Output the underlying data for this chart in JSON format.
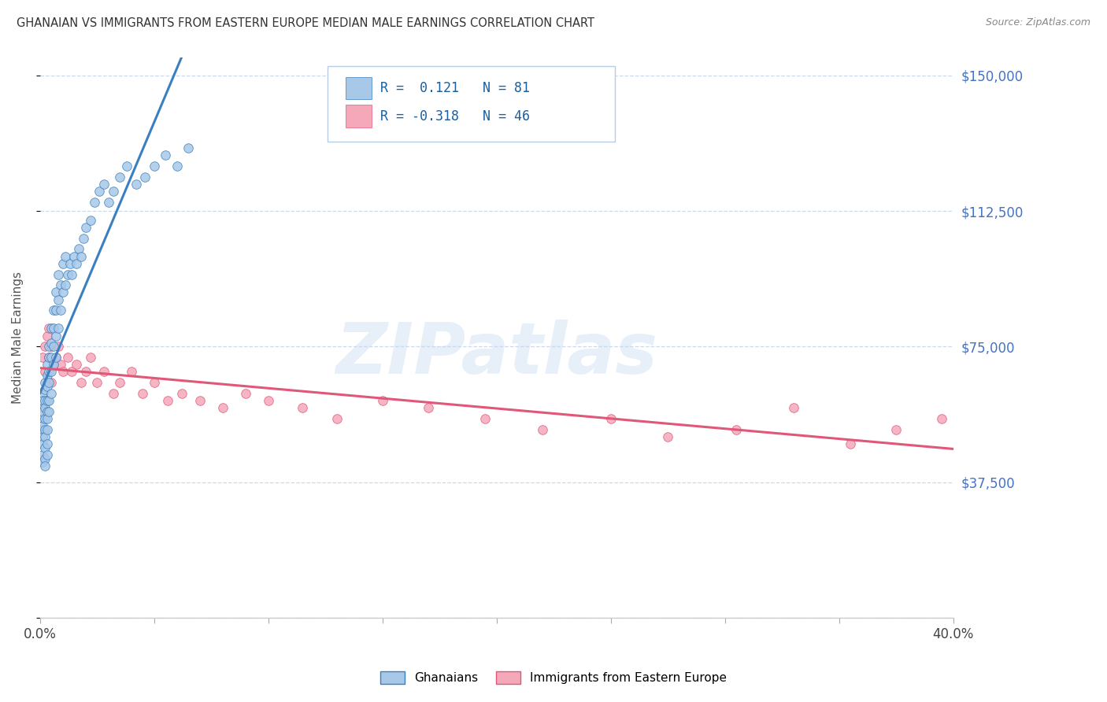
{
  "title": "GHANAIAN VS IMMIGRANTS FROM EASTERN EUROPE MEDIAN MALE EARNINGS CORRELATION CHART",
  "source": "Source: ZipAtlas.com",
  "ylabel": "Median Male Earnings",
  "yticks": [
    0,
    37500,
    75000,
    112500,
    150000
  ],
  "ytick_labels": [
    "",
    "$37,500",
    "$75,000",
    "$112,500",
    "$150,000"
  ],
  "xmin": 0.0,
  "xmax": 0.4,
  "ymin": 15000,
  "ymax": 155000,
  "r_ghanaian": 0.121,
  "n_ghanaian": 81,
  "r_eastern": -0.318,
  "n_eastern": 46,
  "color_ghanaian": "#a8c8e8",
  "color_eastern": "#f5a8ba",
  "line_color_ghanaian": "#3a7fc0",
  "line_color_eastern": "#e05878",
  "watermark": "ZIPatlas",
  "background_color": "#ffffff",
  "ghanaian_x": [
    0.001,
    0.001,
    0.001,
    0.001,
    0.001,
    0.001,
    0.001,
    0.001,
    0.001,
    0.001,
    0.001,
    0.002,
    0.002,
    0.002,
    0.002,
    0.002,
    0.002,
    0.002,
    0.002,
    0.002,
    0.002,
    0.003,
    0.003,
    0.003,
    0.003,
    0.003,
    0.003,
    0.003,
    0.003,
    0.003,
    0.004,
    0.004,
    0.004,
    0.004,
    0.004,
    0.004,
    0.005,
    0.005,
    0.005,
    0.005,
    0.005,
    0.006,
    0.006,
    0.006,
    0.006,
    0.007,
    0.007,
    0.007,
    0.007,
    0.008,
    0.008,
    0.008,
    0.009,
    0.009,
    0.01,
    0.01,
    0.011,
    0.011,
    0.012,
    0.013,
    0.014,
    0.015,
    0.016,
    0.017,
    0.018,
    0.019,
    0.02,
    0.022,
    0.024,
    0.026,
    0.028,
    0.03,
    0.032,
    0.035,
    0.038,
    0.042,
    0.046,
    0.05,
    0.055,
    0.06,
    0.065
  ],
  "ghanaian_y": [
    58000,
    55000,
    52000,
    50000,
    48000,
    62000,
    60000,
    57000,
    53000,
    45000,
    43000,
    65000,
    63000,
    60000,
    58000,
    55000,
    52000,
    50000,
    47000,
    44000,
    42000,
    70000,
    67000,
    64000,
    60000,
    57000,
    55000,
    52000,
    48000,
    45000,
    75000,
    72000,
    68000,
    65000,
    60000,
    57000,
    80000,
    76000,
    72000,
    68000,
    62000,
    85000,
    80000,
    75000,
    70000,
    90000,
    85000,
    78000,
    72000,
    95000,
    88000,
    80000,
    92000,
    85000,
    98000,
    90000,
    100000,
    92000,
    95000,
    98000,
    95000,
    100000,
    98000,
    102000,
    100000,
    105000,
    108000,
    110000,
    115000,
    118000,
    120000,
    115000,
    118000,
    122000,
    125000,
    120000,
    122000,
    125000,
    128000,
    125000,
    130000
  ],
  "eastern_x": [
    0.001,
    0.002,
    0.002,
    0.003,
    0.003,
    0.004,
    0.004,
    0.005,
    0.005,
    0.006,
    0.007,
    0.008,
    0.009,
    0.01,
    0.012,
    0.014,
    0.016,
    0.018,
    0.02,
    0.022,
    0.025,
    0.028,
    0.032,
    0.035,
    0.04,
    0.045,
    0.05,
    0.056,
    0.062,
    0.07,
    0.08,
    0.09,
    0.1,
    0.115,
    0.13,
    0.15,
    0.17,
    0.195,
    0.22,
    0.25,
    0.275,
    0.305,
    0.33,
    0.355,
    0.375,
    0.395
  ],
  "eastern_y": [
    72000,
    75000,
    68000,
    78000,
    65000,
    80000,
    72000,
    75000,
    65000,
    70000,
    72000,
    75000,
    70000,
    68000,
    72000,
    68000,
    70000,
    65000,
    68000,
    72000,
    65000,
    68000,
    62000,
    65000,
    68000,
    62000,
    65000,
    60000,
    62000,
    60000,
    58000,
    62000,
    60000,
    58000,
    55000,
    60000,
    58000,
    55000,
    52000,
    55000,
    50000,
    52000,
    58000,
    48000,
    52000,
    55000
  ]
}
